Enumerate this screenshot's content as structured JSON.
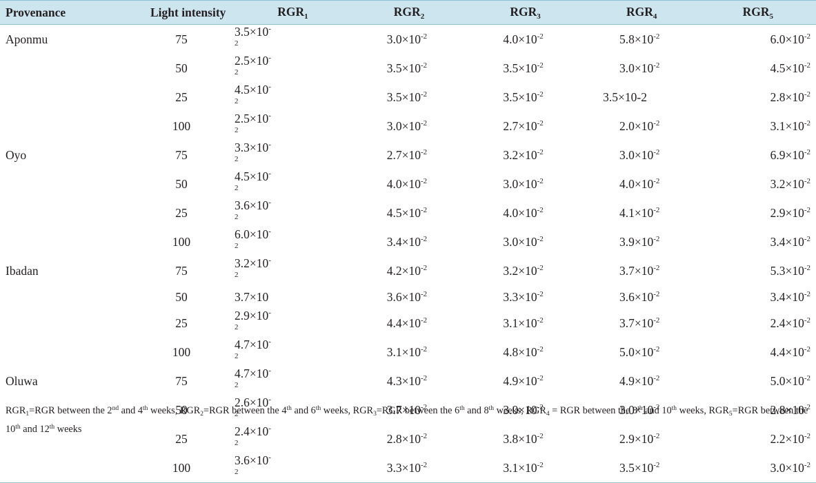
{
  "table": {
    "headers": [
      "Provenance",
      "Light intensity",
      "RGR",
      "RGR",
      "RGR",
      "RGR",
      "RGR"
    ],
    "header_subscripts": [
      "",
      "",
      "1",
      "2",
      "3",
      "4",
      "5"
    ],
    "rows": [
      {
        "provenance": "Aponmu",
        "light": "75",
        "v": [
          "3.5",
          "3.0",
          "4.0",
          "5.8",
          "6.0"
        ],
        "raw": [
          null,
          null,
          null,
          null,
          null
        ]
      },
      {
        "provenance": "",
        "light": "50",
        "v": [
          "2.5",
          "3.5",
          "3.5",
          "3.0",
          "4.5"
        ],
        "raw": [
          null,
          null,
          null,
          null,
          null
        ]
      },
      {
        "provenance": "",
        "light": "25",
        "v": [
          "4.5",
          "3.5",
          "3.5",
          "",
          "2.8"
        ],
        "raw": [
          null,
          null,
          null,
          "3.5×10-2",
          null
        ]
      },
      {
        "provenance": "",
        "light": "100",
        "v": [
          "2.5",
          "3.0",
          "2.7",
          "2.0",
          "3.1"
        ],
        "raw": [
          null,
          null,
          null,
          null,
          null
        ]
      },
      {
        "provenance": "Oyo",
        "light": "75",
        "v": [
          "3.3",
          "2.7",
          "3.2",
          "3.0",
          "6.9"
        ],
        "raw": [
          null,
          null,
          null,
          null,
          null
        ]
      },
      {
        "provenance": "",
        "light": "50",
        "v": [
          "4.5",
          "4.0",
          "3.0",
          "4.0",
          "3.2"
        ],
        "raw": [
          null,
          null,
          null,
          null,
          null
        ]
      },
      {
        "provenance": "",
        "light": "25",
        "v": [
          "3.6",
          "4.5",
          "4.0",
          "4.1",
          "2.9"
        ],
        "raw": [
          null,
          null,
          null,
          null,
          null
        ]
      },
      {
        "provenance": "",
        "light": "100",
        "v": [
          "6.0",
          "3.4",
          "3.0",
          "3.9",
          "3.4"
        ],
        "raw": [
          null,
          null,
          null,
          null,
          null
        ]
      },
      {
        "provenance": "Ibadan",
        "light": "75",
        "v": [
          "3.2",
          "4.2",
          "3.2",
          "3.7",
          "5.3"
        ],
        "raw": [
          null,
          null,
          null,
          null,
          null
        ]
      },
      {
        "provenance": "",
        "light": "50",
        "v": [
          "",
          "3.6",
          "3.3",
          "3.6",
          "3.4"
        ],
        "raw": [
          "3.7×10",
          null,
          null,
          null,
          null
        ]
      },
      {
        "provenance": "",
        "light": "25",
        "v": [
          "2.9",
          "4.4",
          "3.1",
          "3.7",
          "2.4"
        ],
        "raw": [
          null,
          null,
          null,
          null,
          null
        ]
      },
      {
        "provenance": "",
        "light": "100",
        "v": [
          "4.7",
          "3.1",
          "4.8",
          "5.0",
          "4.4"
        ],
        "raw": [
          null,
          null,
          null,
          null,
          null
        ]
      },
      {
        "provenance": "Oluwa",
        "light": "75",
        "v": [
          "4.7",
          "4.3",
          "4.9",
          "4.9",
          "5.0"
        ],
        "raw": [
          null,
          null,
          null,
          null,
          null
        ]
      },
      {
        "provenance": "",
        "light": "50",
        "v": [
          "2.6",
          "3.7",
          "3.0",
          "3.0",
          "2.8"
        ],
        "raw": [
          null,
          null,
          null,
          null,
          null
        ]
      },
      {
        "provenance": "",
        "light": "25",
        "v": [
          "2.4",
          "2.8",
          "3.8",
          "2.9",
          "2.2"
        ],
        "raw": [
          null,
          null,
          null,
          null,
          null
        ]
      },
      {
        "provenance": "",
        "light": "100",
        "v": [
          "3.6",
          "3.3",
          "3.1",
          "3.5",
          "3.0"
        ],
        "raw": [
          null,
          null,
          null,
          null,
          null
        ]
      }
    ],
    "sci_mantissa_suffix": "×10",
    "sci_exponent": "-2"
  },
  "footnote": {
    "parts": [
      {
        "t": "RGR"
      },
      {
        "sub": "1"
      },
      {
        "t": "=RGR between the 2"
      },
      {
        "sup": "nd"
      },
      {
        "t": " and 4"
      },
      {
        "sup": "th"
      },
      {
        "t": " weeks, "
      },
      {
        "t": "RGR"
      },
      {
        "sub": "2"
      },
      {
        "t": "=RGR between the 4"
      },
      {
        "sup": "th"
      },
      {
        "t": " and 6"
      },
      {
        "sup": "th"
      },
      {
        "t": " weeks, "
      },
      {
        "t": "RGR"
      },
      {
        "sub": "3"
      },
      {
        "t": "=RGR between the 6"
      },
      {
        "sup": "th"
      },
      {
        "t": " and 8"
      },
      {
        "sup": "th"
      },
      {
        "t": " weeks, "
      },
      {
        "t": "RGR"
      },
      {
        "sub": "4"
      },
      {
        "t": " = RGR between the 8"
      },
      {
        "sup": "th"
      },
      {
        "t": " and 10"
      },
      {
        "sup": "th"
      },
      {
        "t": " weeks, "
      },
      {
        "t": "RGR"
      },
      {
        "sub": "5"
      },
      {
        "t": "=RGR between the 10"
      },
      {
        "sup": "th"
      },
      {
        "t": " and 12"
      },
      {
        "sup": "th"
      },
      {
        "t": " weeks"
      }
    ]
  }
}
